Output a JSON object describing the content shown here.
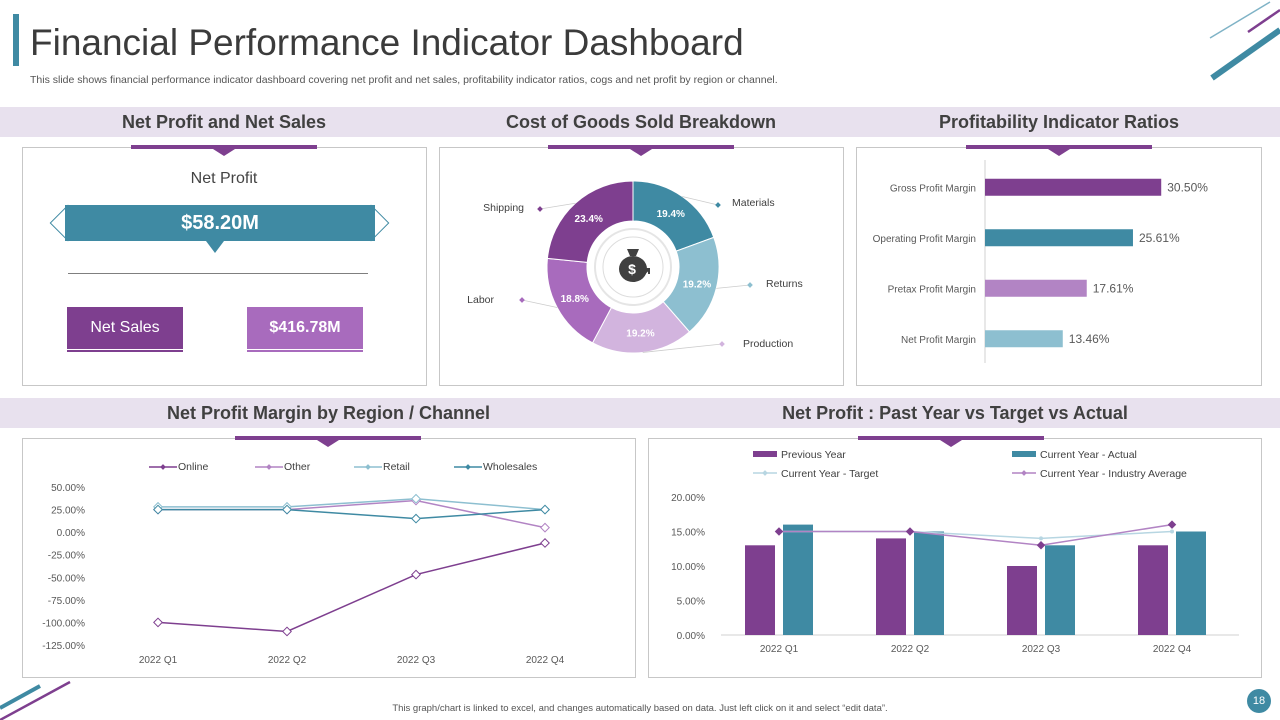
{
  "header": {
    "title": "Financial Performance Indicator Dashboard",
    "subtitle": "This slide shows financial performance indicator dashboard covering net profit and net sales, profitability indicator ratios, cogs and net profit by region or channel."
  },
  "sections": {
    "net_profit_sales": "Net Profit and Net Sales",
    "cogs": "Cost of Goods Sold Breakdown",
    "ratios": "Profitability Indicator Ratios",
    "region": "Net Profit Margin by Region / Channel",
    "past_year": "Net Profit : Past Year vs Target vs Actual"
  },
  "kpi": {
    "net_profit_label": "Net Profit",
    "net_profit_value": "$58.20M",
    "net_sales_label": "Net Sales",
    "net_sales_value": "$416.78M"
  },
  "colors": {
    "purple": "#7e3f8f",
    "teal": "#3f8aa3",
    "light_purple": "#b284c4",
    "light_teal": "#8dbfd0",
    "band": "#e8e1ee"
  },
  "chart_data": [
    {
      "id": "cogs",
      "type": "pie",
      "title": "Cost of Goods Sold Breakdown",
      "center_icon": "money-bag-icon",
      "slices": [
        {
          "label": "Materials",
          "value": 19.4,
          "text": "19.4%",
          "color": "#3f8aa3"
        },
        {
          "label": "Returns",
          "value": 19.2,
          "text": "19.2%",
          "color": "#8dbfd0"
        },
        {
          "label": "Production",
          "value": 19.2,
          "text": "19.2%",
          "color": "#d2b4de"
        },
        {
          "label": "Labor",
          "value": 18.8,
          "text": "18.8%",
          "color": "#a86bbd"
        },
        {
          "label": "Shipping",
          "value": 23.4,
          "text": "23.4%",
          "color": "#7e3f8f"
        }
      ]
    },
    {
      "id": "ratios",
      "type": "bar",
      "orientation": "horizontal",
      "title": "Profitability Indicator Ratios",
      "categories": [
        "Gross Profit Margin",
        "Operating Profit Margin",
        "Pretax Profit Margin",
        "Net Profit Margin"
      ],
      "values": [
        30.5,
        25.61,
        17.61,
        13.46
      ],
      "labels": [
        "30.50%",
        "25.61%",
        "17.61%",
        "13.46%"
      ],
      "colors": [
        "#7e3f8f",
        "#3f8aa3",
        "#b284c4",
        "#8dbfd0"
      ],
      "xlim": [
        0,
        45
      ]
    },
    {
      "id": "region",
      "type": "line",
      "title": "Net Profit Margin by Region / Channel",
      "categories": [
        "2022 Q1",
        "2022 Q2",
        "2022 Q3",
        "2022 Q4"
      ],
      "yticks": [
        "50.00%",
        "25.00%",
        "0.00%",
        "-25.00%",
        "-50.00%",
        "-75.00%",
        "-100.00%",
        "-125.00%"
      ],
      "ylim": [
        -125,
        50
      ],
      "series": [
        {
          "name": "Online",
          "values": [
            -100,
            -110,
            -47,
            -12
          ],
          "color": "#7e3f8f"
        },
        {
          "name": "Other",
          "values": [
            25,
            25,
            35,
            5
          ],
          "color": "#b284c4"
        },
        {
          "name": "Retail",
          "values": [
            28,
            28,
            37,
            25
          ],
          "color": "#8dbfd0"
        },
        {
          "name": "Wholesales",
          "values": [
            25,
            25,
            15,
            25
          ],
          "color": "#3f8aa3"
        }
      ]
    },
    {
      "id": "past_year",
      "type": "bar",
      "title": "Net Profit : Past Year vs Target vs Actual",
      "categories": [
        "2022 Q1",
        "2022 Q2",
        "2022 Q3",
        "2022 Q4"
      ],
      "yticks": [
        "20.00%",
        "15.00%",
        "10.00%",
        "5.00%",
        "0.00%"
      ],
      "ylim": [
        0,
        20
      ],
      "bar_series": [
        {
          "name": "Previous Year",
          "values": [
            13,
            14,
            10,
            13
          ],
          "color": "#7e3f8f"
        },
        {
          "name": "Current Year - Actual",
          "values": [
            16,
            15,
            13,
            15
          ],
          "color": "#3f8aa3"
        }
      ],
      "line_series": [
        {
          "name": "Current Year - Target",
          "values": [
            15,
            15,
            14,
            15
          ],
          "color": "#b7d6e2"
        },
        {
          "name": "Current Year - Industry Average",
          "values": [
            15,
            15,
            13,
            16
          ],
          "color": "#b284c4"
        }
      ]
    }
  ],
  "footer": {
    "note": "This graph/chart is linked to excel, and changes automatically based on data. Just left click on it and select “edit data”.",
    "page_number": "18"
  }
}
